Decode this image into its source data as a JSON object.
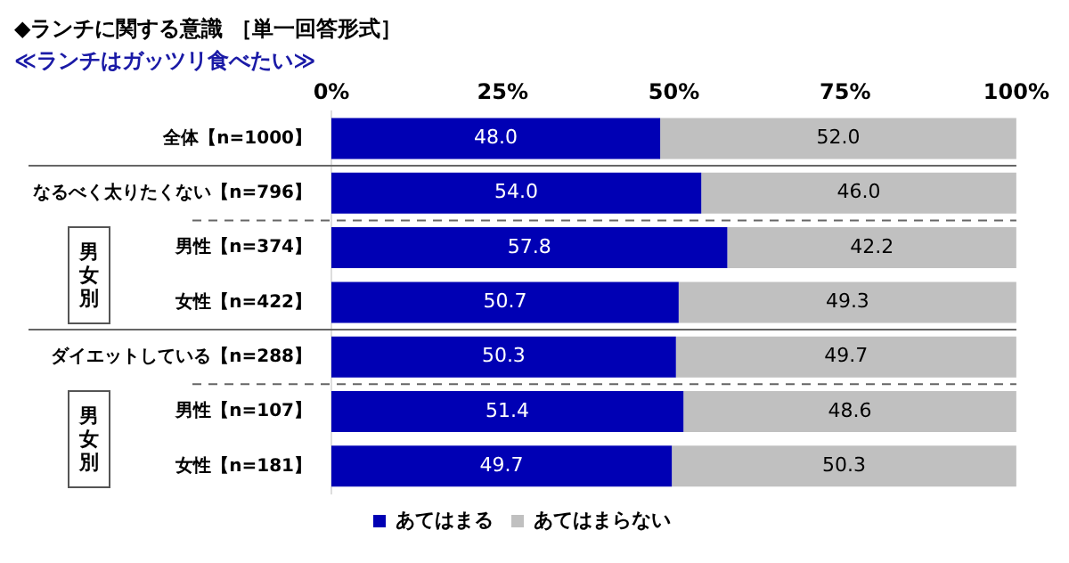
{
  "chart_data": {
    "type": "bar",
    "orientation": "horizontal",
    "stacked": true,
    "title": "◆ランチに関する意識 ［単一回答形式］",
    "subtitle": "≪ランチはガッツリ食べたい≫",
    "categories": [
      "全体【n=1000】",
      "なるべく太りたくない【n=796】",
      "男性【n=374】",
      "女性【n=422】",
      "ダイエットしている【n=288】",
      "男性【n=107】",
      "女性【n=181】"
    ],
    "series": [
      {
        "name": "あてはまる",
        "color": "#0000b4",
        "values": [
          48.0,
          54.0,
          57.8,
          50.7,
          50.3,
          51.4,
          49.7
        ],
        "value_labels": [
          "48.0",
          "54.0",
          "57.8",
          "50.7",
          "50.3",
          "51.4",
          "49.7"
        ]
      },
      {
        "name": "あてはまらない",
        "color": "#c0c0c0",
        "values": [
          52.0,
          46.0,
          42.2,
          49.3,
          49.7,
          48.6,
          50.3
        ],
        "value_labels": [
          "52.0",
          "46.0",
          "42.2",
          "49.3",
          "49.7",
          "48.6",
          "50.3"
        ]
      }
    ],
    "xlim": [
      0,
      100
    ],
    "xticks": [
      {
        "value": 0,
        "label": "0%"
      },
      {
        "value": 25,
        "label": "25%"
      },
      {
        "value": 50,
        "label": "50%"
      },
      {
        "value": 75,
        "label": "75%"
      },
      {
        "value": 100,
        "label": "100%"
      }
    ],
    "annotations": [
      "男女別",
      "男女別"
    ],
    "grid": false,
    "legend": "bottom"
  }
}
